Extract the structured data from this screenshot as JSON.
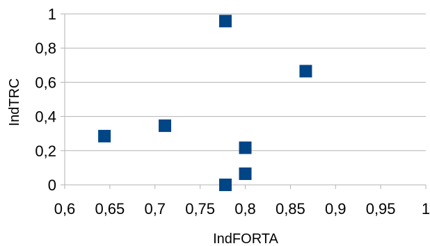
{
  "chart_data": {
    "type": "scatter",
    "xlabel": "IndFORTA",
    "ylabel": "IndTRC",
    "xlim": [
      0.6,
      1
    ],
    "ylim": [
      0,
      1
    ],
    "x_ticks": [
      0.6,
      0.65,
      0.7,
      0.75,
      0.8,
      0.85,
      0.9,
      0.95,
      1
    ],
    "x_tick_labels": [
      "0,6",
      "0,65",
      "0,7",
      "0,75",
      "0,8",
      "0,85",
      "0,9",
      "0,95",
      "1"
    ],
    "y_ticks": [
      0,
      0.2,
      0.4,
      0.6,
      0.8,
      1
    ],
    "y_tick_labels": [
      "0",
      "0,2",
      "0,4",
      "0,6",
      "0,8",
      "1"
    ],
    "grid": "horizontal",
    "legend": "none",
    "marker": "square",
    "series": [
      {
        "color": "#004586",
        "points": [
          {
            "x": 0.644,
            "y": 0.285
          },
          {
            "x": 0.711,
            "y": 0.346
          },
          {
            "x": 0.778,
            "y": 0.958
          },
          {
            "x": 0.778,
            "y": 0.0
          },
          {
            "x": 0.8,
            "y": 0.217
          },
          {
            "x": 0.8,
            "y": 0.065
          },
          {
            "x": 0.867,
            "y": 0.665
          }
        ]
      }
    ]
  }
}
